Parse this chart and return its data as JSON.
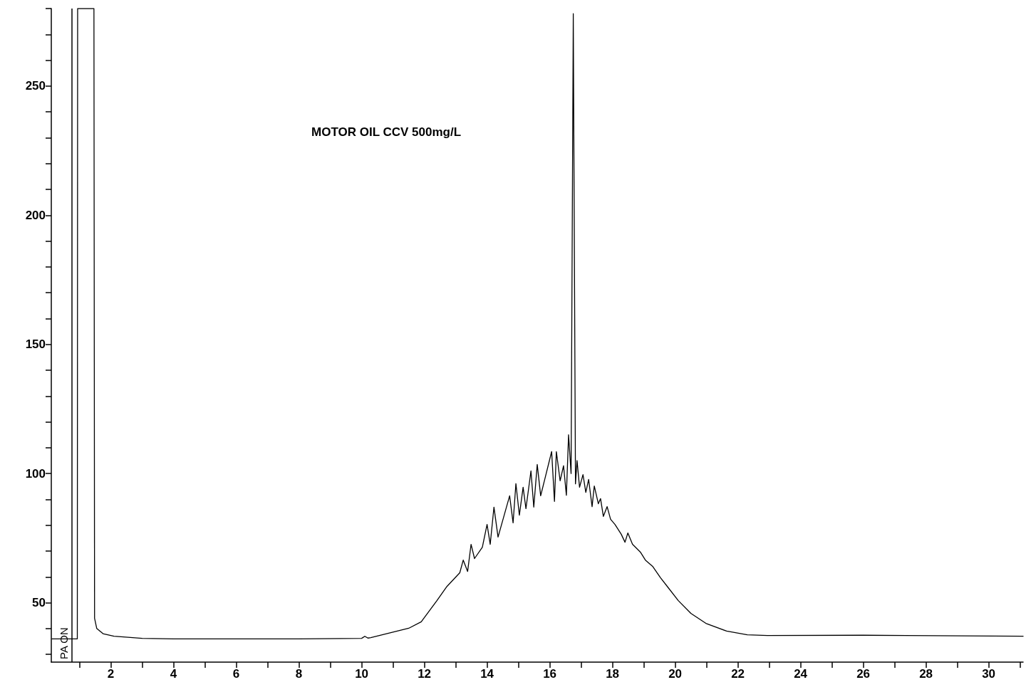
{
  "chart_data": {
    "type": "line",
    "title": "MOTOR OIL CCV 500mg/L",
    "x": [
      0.12,
      0.75,
      0.93,
      0.94,
      1.46,
      1.48,
      1.55,
      1.75,
      2.1,
      3,
      4,
      8,
      10,
      10.1,
      10.2,
      10.29,
      11.5,
      11.9,
      12.4,
      12.72,
      13.13,
      13.24,
      13.38,
      13.49,
      13.6,
      13.85,
      14.0,
      14.1,
      14.22,
      14.35,
      14.72,
      14.83,
      14.92,
      15.03,
      15.15,
      15.24,
      15.4,
      15.49,
      15.6,
      15.71,
      16.06,
      16.15,
      16.21,
      16.33,
      16.44,
      16.53,
      16.6,
      16.68,
      16.75,
      16.82,
      16.87,
      16.95,
      17.06,
      17.15,
      17.24,
      17.35,
      17.42,
      17.55,
      17.62,
      17.71,
      17.83,
      17.94,
      18.08,
      18.28,
      18.4,
      18.49,
      18.64,
      18.89,
      19.05,
      19.28,
      19.53,
      19.78,
      20.1,
      20.5,
      20.98,
      21.64,
      22.3,
      22.94,
      26,
      31.1
    ],
    "series": [
      {
        "color": "#000000",
        "values": [
          36,
          36,
          36,
          280,
          280,
          44,
          40,
          38,
          37,
          36.2,
          36,
          36,
          36.2,
          37,
          36.3,
          36.5,
          40.1,
          42.6,
          50.8,
          56.3,
          61.6,
          66.5,
          62.1,
          72.6,
          67.1,
          71.5,
          80.3,
          72.6,
          87,
          75.4,
          91.4,
          80.9,
          96.1,
          83.9,
          94.7,
          86.4,
          101,
          87,
          103.5,
          91.4,
          108.5,
          89.2,
          108.5,
          97.2,
          103,
          91.6,
          115,
          100,
          278,
          96,
          105,
          94.7,
          99.6,
          92.7,
          97.7,
          87.2,
          95.2,
          88.3,
          90.3,
          83.4,
          87.2,
          82.3,
          80.3,
          76.5,
          73.4,
          77,
          72.6,
          69.6,
          66.5,
          64.1,
          59.7,
          55.8,
          50.8,
          45.9,
          42,
          39,
          37.6,
          37.3,
          37.4,
          37
        ]
      }
    ],
    "xlim": [
      0.1,
      31.1
    ],
    "ylim": [
      27,
      280
    ],
    "xticks": [
      {
        "value": 1,
        "label": null
      },
      2,
      {
        "value": 3,
        "label": null
      },
      4,
      {
        "value": 5,
        "label": null
      },
      6,
      {
        "value": 7,
        "label": null
      },
      8,
      {
        "value": 9,
        "label": null
      },
      10,
      {
        "value": 11,
        "label": null
      },
      12,
      {
        "value": 13,
        "label": null
      },
      14,
      {
        "value": 15,
        "label": null
      },
      16,
      {
        "value": 17,
        "label": null
      },
      18,
      {
        "value": 19,
        "label": null
      },
      20,
      {
        "value": 21,
        "label": null
      },
      22,
      {
        "value": 23,
        "label": null
      },
      24,
      {
        "value": 25,
        "label": null
      },
      26,
      {
        "value": 27,
        "label": null
      },
      28,
      {
        "value": 29,
        "label": null
      },
      30,
      {
        "value": 31,
        "label": null
      }
    ],
    "yticks": [
      {
        "value": 30,
        "label": null
      },
      {
        "value": 40,
        "label": null
      },
      50,
      {
        "value": 60,
        "label": null
      },
      {
        "value": 70,
        "label": null
      },
      {
        "value": 80,
        "label": null
      },
      {
        "value": 90,
        "label": null
      },
      100,
      {
        "value": 110,
        "label": null
      },
      {
        "value": 120,
        "label": null
      },
      {
        "value": 130,
        "label": null
      },
      {
        "value": 140,
        "label": null
      },
      150,
      {
        "value": 160,
        "label": null
      },
      {
        "value": 170,
        "label": null
      },
      {
        "value": 180,
        "label": null
      },
      {
        "value": 190,
        "label": null
      },
      200,
      {
        "value": 210,
        "label": null
      },
      {
        "value": 220,
        "label": null
      },
      {
        "value": 230,
        "label": null
      },
      {
        "value": 240,
        "label": null
      },
      250,
      {
        "value": 260,
        "label": null
      },
      {
        "value": 270,
        "label": null
      },
      {
        "value": 280,
        "label": null
      }
    ],
    "ref_lines": [
      {
        "axis": "x",
        "value": 0.75,
        "label": "PA ON"
      }
    ],
    "grid": false,
    "legend": false,
    "marker": "none",
    "line_style": "solid"
  }
}
